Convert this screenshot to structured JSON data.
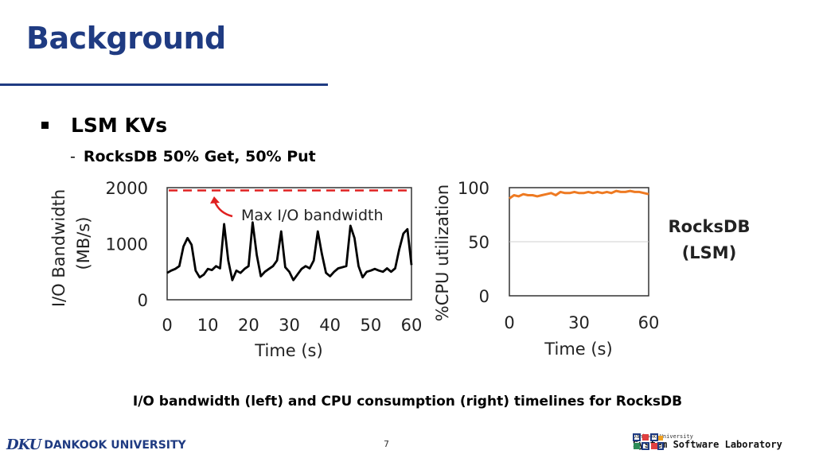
{
  "slide": {
    "title": "Background",
    "bullet": "LSM KVs",
    "sub_dash": "-",
    "sub": "RocksDB 50% Get, 50% Put",
    "caption": "I/O bandwidth (left) and CPU consumption (right) timelines for RocksDB",
    "page_number": "7",
    "footer_university": "DANKOOK UNIVERSITY",
    "footer_university_mark": "DKU",
    "lab_small": "Dankook University",
    "lab_big": "System Software Laboratory",
    "side_label_line1": "RocksDB",
    "side_label_line2": "(LSM)",
    "colors": {
      "title": "#1f3b82",
      "io_line": "#000000",
      "max_line": "#e02020",
      "cpu_line": "#ee7a22"
    }
  },
  "chart_data": [
    {
      "type": "line",
      "ylabel": "I/O Bandwidth (MB/s)",
      "ylabel_line1": "I/O Bandwidth",
      "ylabel_line2": "(MB/s)",
      "xlabel": "Time (s)",
      "xlim": [
        0,
        60
      ],
      "ylim": [
        0,
        2000
      ],
      "xticks": [
        0,
        10,
        20,
        30,
        40,
        50,
        60
      ],
      "yticks": [
        0,
        1000,
        2000
      ],
      "grid": false,
      "annotation": "Max I/O bandwidth",
      "max_line": 1950,
      "series": [
        {
          "x": [
            0,
            1,
            2,
            3,
            4,
            5,
            6,
            7,
            8,
            9,
            10,
            11,
            12,
            13,
            14,
            15,
            16,
            17,
            18,
            19,
            20,
            21,
            22,
            23,
            24,
            25,
            26,
            27,
            28,
            29,
            30,
            31,
            32,
            33,
            34,
            35,
            36,
            37,
            38,
            39,
            40,
            41,
            42,
            43,
            44,
            45,
            46,
            47,
            48,
            49,
            50,
            51,
            52,
            53,
            54,
            55,
            56,
            57,
            58,
            59,
            60
          ],
          "values": [
            480,
            520,
            550,
            600,
            950,
            1100,
            980,
            520,
            400,
            450,
            550,
            530,
            600,
            560,
            1350,
            700,
            350,
            520,
            480,
            550,
            600,
            1380,
            800,
            420,
            500,
            550,
            600,
            700,
            1220,
            580,
            500,
            350,
            450,
            550,
            600,
            560,
            700,
            1220,
            820,
            480,
            420,
            500,
            560,
            580,
            600,
            1320,
            1100,
            600,
            400,
            500,
            520,
            550,
            520,
            500,
            560,
            500,
            560,
            900,
            1180,
            1260,
            620
          ]
        }
      ]
    },
    {
      "type": "line",
      "ylabel": "%CPU utilization",
      "xlabel": "Time (s)",
      "xlim": [
        0,
        60
      ],
      "ylim": [
        0,
        100
      ],
      "xticks": [
        0,
        30,
        60
      ],
      "yticks": [
        0,
        50,
        100
      ],
      "grid": true,
      "series": [
        {
          "x": [
            0,
            2,
            4,
            6,
            8,
            10,
            12,
            14,
            16,
            18,
            20,
            22,
            24,
            26,
            28,
            30,
            32,
            34,
            36,
            38,
            40,
            42,
            44,
            46,
            48,
            50,
            52,
            54,
            56,
            58,
            60
          ],
          "values": [
            90,
            93,
            92,
            94,
            93,
            93,
            92,
            93,
            94,
            95,
            93,
            96,
            95,
            95,
            96,
            95,
            95,
            96,
            95,
            96,
            95,
            96,
            95,
            97,
            96,
            96,
            97,
            96,
            96,
            95,
            94
          ]
        }
      ]
    }
  ]
}
